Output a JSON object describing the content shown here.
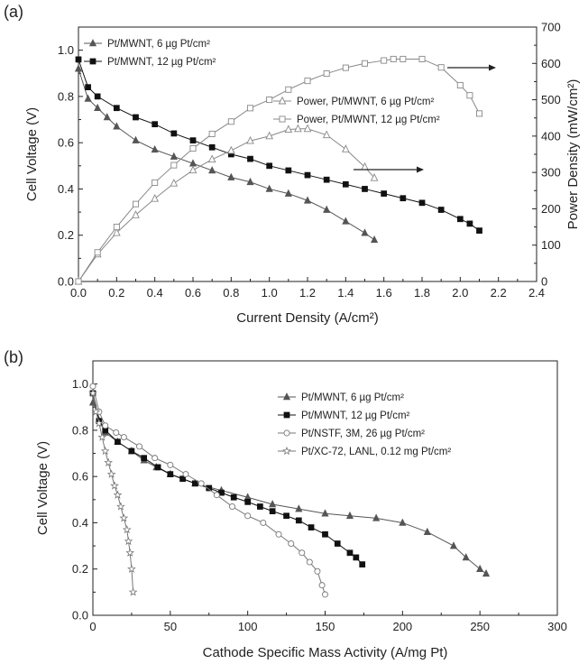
{
  "chart_data": [
    {
      "panel_label": "(a)",
      "type": "line",
      "xlabel": "Current Density (A/cm²)",
      "ylabel": "Cell Voltage (V)",
      "y2label": "Power Density (mW/cm²)",
      "xlim": [
        0.0,
        2.4
      ],
      "ylim": [
        0.0,
        1.1
      ],
      "y2lim": [
        0,
        700
      ],
      "xticks": [
        0.0,
        0.2,
        0.4,
        0.6,
        0.8,
        1.0,
        1.2,
        1.4,
        1.6,
        1.8,
        2.0,
        2.2,
        2.4
      ],
      "xtick_labels": [
        "0.0",
        "0.2",
        "0.4",
        "0.6",
        "0.8",
        "1.0",
        "1.2",
        "1.4",
        "1.6",
        "1.8",
        "2.0",
        "2.2",
        "2.4"
      ],
      "yticks": [
        0.0,
        0.2,
        0.4,
        0.6,
        0.8,
        1.0
      ],
      "ytick_labels": [
        "0.0",
        "0.2",
        "0.4",
        "0.6",
        "0.8",
        "1.0"
      ],
      "y2ticks": [
        0,
        100,
        200,
        300,
        400,
        500,
        600,
        700
      ],
      "y2tick_labels": [
        "0",
        "100",
        "200",
        "300",
        "400",
        "500",
        "600",
        "700"
      ],
      "grid": false,
      "legend": [
        "top-left",
        "right"
      ],
      "series": [
        {
          "name": "Pt/MWNT, 6 µg Pt/cm²",
          "axis": "left",
          "marker": "triangle-filled",
          "color": "#555555",
          "x": [
            0.0,
            0.05,
            0.1,
            0.15,
            0.2,
            0.3,
            0.4,
            0.5,
            0.6,
            0.7,
            0.8,
            0.9,
            1.0,
            1.1,
            1.2,
            1.3,
            1.4,
            1.5,
            1.55
          ],
          "y": [
            0.92,
            0.79,
            0.75,
            0.71,
            0.67,
            0.61,
            0.57,
            0.54,
            0.51,
            0.48,
            0.45,
            0.43,
            0.4,
            0.38,
            0.35,
            0.31,
            0.26,
            0.21,
            0.18
          ]
        },
        {
          "name": "Pt/MWNT, 12 µg Pt/cm²",
          "axis": "left",
          "marker": "square-filled",
          "color": "#111111",
          "x": [
            0.0,
            0.05,
            0.1,
            0.2,
            0.3,
            0.4,
            0.5,
            0.6,
            0.7,
            0.8,
            0.9,
            1.0,
            1.1,
            1.2,
            1.3,
            1.4,
            1.5,
            1.6,
            1.7,
            1.8,
            1.9,
            2.0,
            2.05,
            2.1
          ],
          "y": [
            0.96,
            0.84,
            0.8,
            0.75,
            0.71,
            0.68,
            0.64,
            0.61,
            0.58,
            0.55,
            0.53,
            0.5,
            0.48,
            0.46,
            0.44,
            0.42,
            0.4,
            0.38,
            0.36,
            0.34,
            0.31,
            0.27,
            0.25,
            0.22
          ]
        },
        {
          "name": "Power, Pt/MWNT, 6 µg Pt/cm²",
          "axis": "right",
          "marker": "triangle-open",
          "color": "#888888",
          "x": [
            0.0,
            0.1,
            0.2,
            0.3,
            0.4,
            0.5,
            0.6,
            0.7,
            0.8,
            0.9,
            1.0,
            1.1,
            1.15,
            1.2,
            1.3,
            1.4,
            1.5,
            1.55
          ],
          "y": [
            0,
            75,
            134,
            183,
            228,
            270,
            306,
            336,
            360,
            387,
            400,
            418,
            420,
            420,
            403,
            364,
            315,
            285
          ]
        },
        {
          "name": "Power, Pt/MWNT, 12 µg Pt/cm²",
          "axis": "right",
          "marker": "square-open",
          "color": "#888888",
          "x": [
            0.0,
            0.1,
            0.2,
            0.3,
            0.4,
            0.5,
            0.6,
            0.7,
            0.8,
            0.9,
            1.0,
            1.1,
            1.2,
            1.3,
            1.4,
            1.5,
            1.6,
            1.65,
            1.7,
            1.8,
            1.9,
            2.0,
            2.05,
            2.1
          ],
          "y": [
            0,
            80,
            150,
            213,
            272,
            320,
            366,
            406,
            440,
            477,
            500,
            528,
            552,
            572,
            588,
            600,
            608,
            612,
            612,
            612,
            589,
            540,
            512,
            462
          ]
        }
      ]
    },
    {
      "panel_label": "(b)",
      "type": "line",
      "xlabel": "Cathode Specific Mass Activity (A/mg Pt)",
      "ylabel": "Cell Voltage (V)",
      "xlim": [
        0,
        300
      ],
      "ylim": [
        0.0,
        1.1
      ],
      "xticks": [
        0,
        50,
        100,
        150,
        200,
        250,
        300
      ],
      "xtick_labels": [
        "0",
        "50",
        "100",
        "150",
        "200",
        "250",
        "300"
      ],
      "yticks": [
        0.0,
        0.2,
        0.4,
        0.6,
        0.8,
        1.0
      ],
      "ytick_labels": [
        "0.0",
        "0.2",
        "0.4",
        "0.6",
        "0.8",
        "1.0"
      ],
      "grid": false,
      "legend": "top-right",
      "series": [
        {
          "name": "Pt/MWNT, 6 µg Pt/cm²",
          "marker": "triangle-filled",
          "color": "#555555",
          "x": [
            0,
            8,
            16,
            25,
            33,
            41,
            50,
            66,
            83,
            100,
            116,
            133,
            150,
            166,
            183,
            200,
            216,
            233,
            241,
            250,
            254
          ],
          "y": [
            0.92,
            0.79,
            0.75,
            0.71,
            0.67,
            0.64,
            0.61,
            0.57,
            0.54,
            0.51,
            0.48,
            0.46,
            0.44,
            0.43,
            0.42,
            0.4,
            0.36,
            0.3,
            0.25,
            0.2,
            0.18
          ]
        },
        {
          "name": "Pt/MWNT, 12 µg Pt/cm²",
          "marker": "square-filled",
          "color": "#111111",
          "x": [
            0,
            4,
            8,
            16,
            25,
            33,
            42,
            50,
            58,
            66,
            75,
            83,
            91,
            100,
            108,
            116,
            125,
            133,
            141,
            150,
            158,
            166,
            170,
            174
          ],
          "y": [
            0.96,
            0.84,
            0.8,
            0.75,
            0.71,
            0.68,
            0.64,
            0.61,
            0.59,
            0.57,
            0.55,
            0.53,
            0.51,
            0.49,
            0.47,
            0.45,
            0.43,
            0.41,
            0.38,
            0.35,
            0.31,
            0.27,
            0.25,
            0.22
          ]
        },
        {
          "name": "Pt/NSTF, 3M, 26 µg Pt/cm²",
          "marker": "circle-open",
          "color": "#777777",
          "x": [
            0,
            4,
            8,
            15,
            20,
            30,
            40,
            50,
            60,
            70,
            80,
            90,
            100,
            110,
            120,
            128,
            135,
            140,
            145,
            148,
            150
          ],
          "y": [
            0.99,
            0.88,
            0.82,
            0.79,
            0.77,
            0.73,
            0.68,
            0.65,
            0.61,
            0.57,
            0.52,
            0.47,
            0.43,
            0.4,
            0.35,
            0.31,
            0.27,
            0.23,
            0.19,
            0.13,
            0.09
          ]
        },
        {
          "name": "Pt/XC-72, LANL, 0.12 mg Pt/cm²",
          "marker": "star-open",
          "color": "#777777",
          "x": [
            0,
            2,
            4,
            6,
            8,
            10,
            12,
            14,
            16,
            18,
            20,
            22,
            23,
            24,
            25,
            26
          ],
          "y": [
            0.96,
            0.88,
            0.83,
            0.77,
            0.71,
            0.66,
            0.61,
            0.56,
            0.52,
            0.47,
            0.42,
            0.37,
            0.32,
            0.27,
            0.2,
            0.1
          ]
        }
      ]
    }
  ]
}
